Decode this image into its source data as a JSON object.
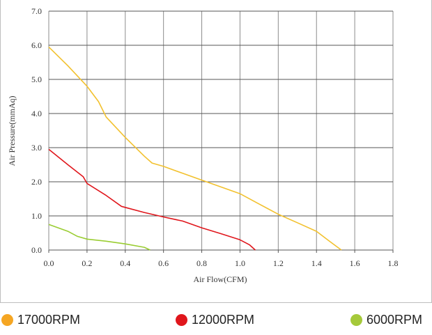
{
  "chart_data": {
    "type": "line",
    "xlabel": "Air Flow(CFM)",
    "ylabel": "Air Pressure(mmAq)",
    "xlim": [
      0,
      1.8
    ],
    "ylim": [
      0,
      7.0
    ],
    "x_ticks": [
      "0.0",
      "0.2",
      "0.4",
      "0.6",
      "0.8",
      "1.0",
      "1.2",
      "1.4",
      "1.6",
      "1.8"
    ],
    "y_ticks": [
      "0.0",
      "1.0",
      "2.0",
      "3.0",
      "4.0",
      "5.0",
      "6.0",
      "7.0"
    ],
    "grid": true,
    "legend_position": "bottom",
    "series": [
      {
        "name": "17000RPM",
        "color": "#f2c12e",
        "legend_color": "#f5a623",
        "points": [
          [
            0.0,
            5.95
          ],
          [
            0.1,
            5.4
          ],
          [
            0.2,
            4.8
          ],
          [
            0.26,
            4.35
          ],
          [
            0.3,
            3.9
          ],
          [
            0.4,
            3.3
          ],
          [
            0.5,
            2.75
          ],
          [
            0.54,
            2.55
          ],
          [
            0.6,
            2.45
          ],
          [
            0.7,
            2.25
          ],
          [
            0.8,
            2.05
          ],
          [
            0.9,
            1.85
          ],
          [
            1.0,
            1.65
          ],
          [
            1.1,
            1.35
          ],
          [
            1.2,
            1.05
          ],
          [
            1.3,
            0.8
          ],
          [
            1.4,
            0.55
          ],
          [
            1.47,
            0.25
          ],
          [
            1.53,
            0.0
          ]
        ]
      },
      {
        "name": "12000RPM",
        "color": "#e0161c",
        "legend_color": "#e0161c",
        "points": [
          [
            0.0,
            2.95
          ],
          [
            0.1,
            2.5
          ],
          [
            0.18,
            2.15
          ],
          [
            0.2,
            1.95
          ],
          [
            0.3,
            1.6
          ],
          [
            0.38,
            1.28
          ],
          [
            0.4,
            1.25
          ],
          [
            0.5,
            1.1
          ],
          [
            0.6,
            0.97
          ],
          [
            0.7,
            0.85
          ],
          [
            0.8,
            0.65
          ],
          [
            0.9,
            0.48
          ],
          [
            1.0,
            0.3
          ],
          [
            1.05,
            0.15
          ],
          [
            1.08,
            0.0
          ]
        ]
      },
      {
        "name": "6000RPM",
        "color": "#9acd32",
        "legend_color": "#a5c93a",
        "points": [
          [
            0.0,
            0.75
          ],
          [
            0.1,
            0.55
          ],
          [
            0.15,
            0.4
          ],
          [
            0.2,
            0.32
          ],
          [
            0.3,
            0.26
          ],
          [
            0.4,
            0.18
          ],
          [
            0.5,
            0.08
          ],
          [
            0.53,
            0.0
          ]
        ]
      }
    ]
  }
}
